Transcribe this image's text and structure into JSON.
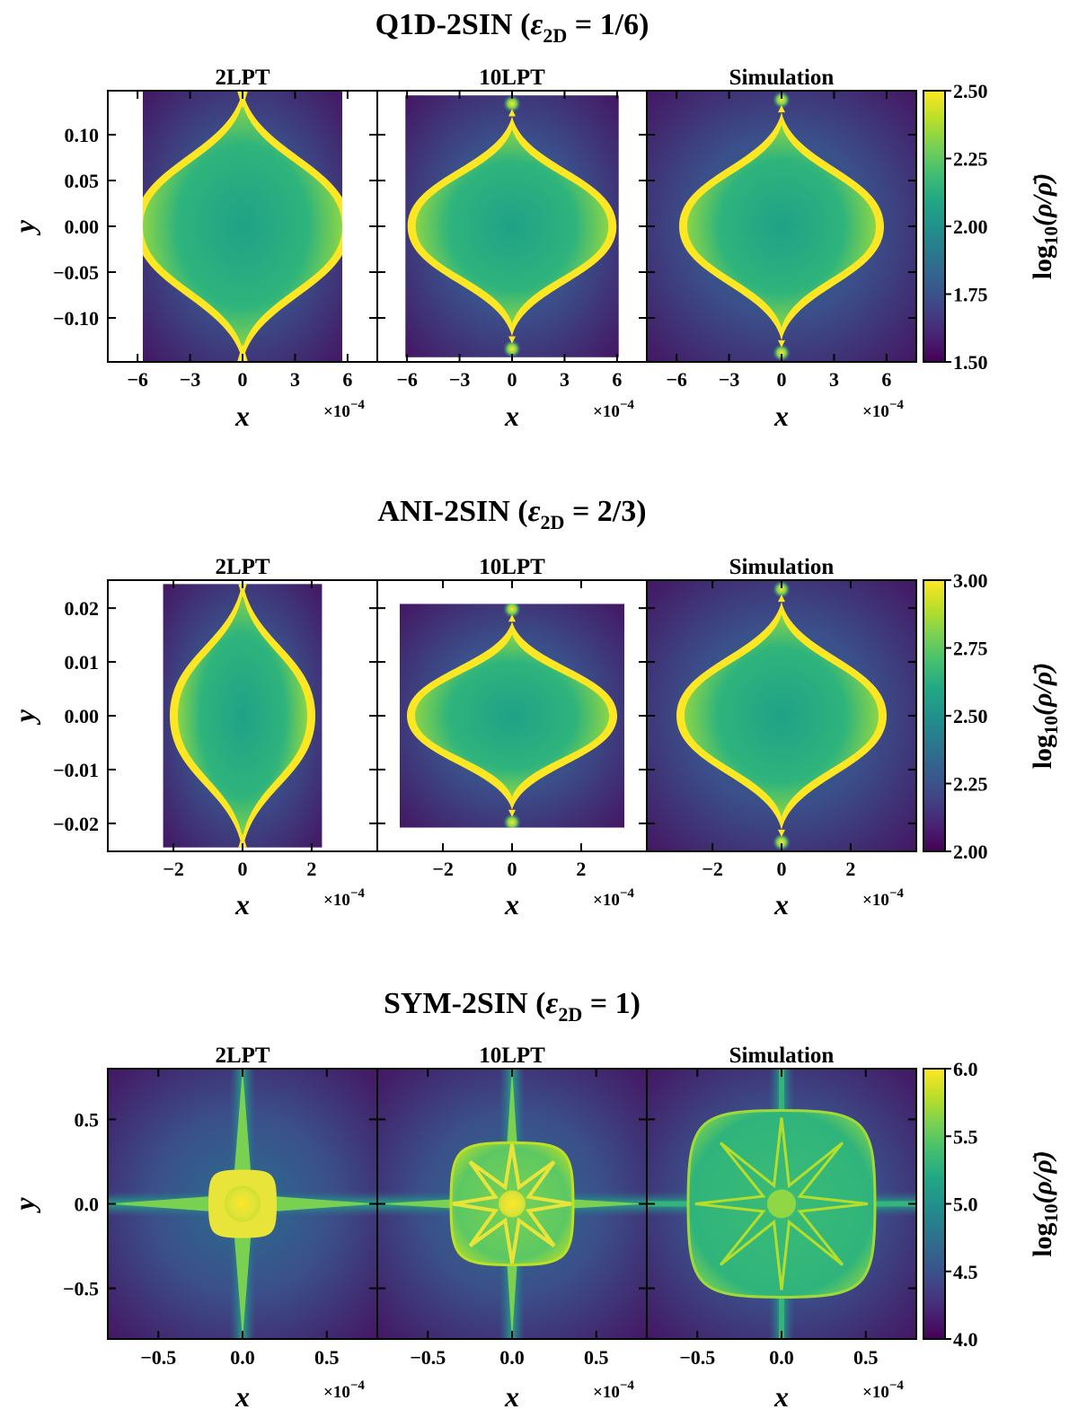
{
  "chart_data": [
    {
      "type": "heatmap",
      "title": "Q1D-2SIN (ε2D = 1/6)",
      "title_parts": {
        "name": "Q1D-2SIN (",
        "eps": "ε",
        "sub": "2D",
        "rest": " = 1/6)"
      },
      "panels": [
        {
          "title": "2LPT",
          "data_xlim": [
            -5.7,
            5.7
          ],
          "data_ylim": [
            -0.148,
            0.148
          ]
        },
        {
          "title": "10LPT",
          "data_xlim": [
            -6.1,
            6.1
          ],
          "data_ylim": [
            -0.143,
            0.143
          ]
        },
        {
          "title": "Simulation",
          "data_xlim": [
            -7.7,
            7.7
          ],
          "data_ylim": [
            -0.148,
            0.148
          ]
        }
      ],
      "xlabel": "x",
      "ylabel": "y",
      "x_scale_label": "×10",
      "x_scale_exp": "−4",
      "xlim": [
        -7.7,
        7.7
      ],
      "ylim": [
        -0.148,
        0.148
      ],
      "xticks": [
        -6,
        -3,
        0,
        3,
        6
      ],
      "xtick_labels": [
        "−6",
        "−3",
        "0",
        "3",
        "6"
      ],
      "yticks": [
        0.1,
        0.05,
        0.0,
        -0.05,
        -0.1
      ],
      "ytick_labels": [
        "0.10",
        "0.05",
        "0.00",
        "−0.05",
        "−0.10"
      ],
      "colorbar": {
        "label": "log10(ρ/ρ̄)",
        "min": 1.5,
        "max": 2.5,
        "ticks": [
          2.5,
          2.25,
          2.0,
          1.75,
          1.5
        ],
        "tick_labels": [
          "2.50",
          "2.25",
          "2.00",
          "1.75",
          "1.50"
        ]
      }
    },
    {
      "type": "heatmap",
      "title": "ANI-2SIN (ε2D = 2/3)",
      "title_parts": {
        "name": "ANI-2SIN (",
        "eps": "ε",
        "sub": "2D",
        "rest": " = 2/3)"
      },
      "panels": [
        {
          "title": "2LPT",
          "data_xlim": [
            -2.3,
            2.3
          ],
          "data_ylim": [
            -0.0245,
            0.0245
          ]
        },
        {
          "title": "10LPT",
          "data_xlim": [
            -3.25,
            3.25
          ],
          "data_ylim": [
            -0.0208,
            0.0208
          ]
        },
        {
          "title": "Simulation",
          "data_xlim": [
            -3.9,
            3.9
          ],
          "data_ylim": [
            -0.0252,
            0.0252
          ]
        }
      ],
      "xlabel": "x",
      "ylabel": "y",
      "x_scale_label": "×10",
      "x_scale_exp": "−4",
      "xlim": [
        -3.9,
        3.9
      ],
      "ylim": [
        -0.0252,
        0.0252
      ],
      "xticks": [
        -2,
        0,
        2
      ],
      "xtick_labels": [
        "−2",
        "0",
        "2"
      ],
      "yticks": [
        0.02,
        0.01,
        0.0,
        -0.01,
        -0.02
      ],
      "ytick_labels": [
        "0.02",
        "0.01",
        "0.00",
        "−0.01",
        "−0.02"
      ],
      "colorbar": {
        "label": "log10(ρ/ρ̄)",
        "min": 2.0,
        "max": 3.0,
        "ticks": [
          3.0,
          2.75,
          2.5,
          2.25,
          2.0
        ],
        "tick_labels": [
          "3.00",
          "2.75",
          "2.50",
          "2.25",
          "2.00"
        ]
      }
    },
    {
      "type": "heatmap",
      "title": "SYM-2SIN (ε2D = 1)",
      "title_parts": {
        "name": "SYM-2SIN (",
        "eps": "ε",
        "sub": "2D",
        "rest": " = 1)"
      },
      "panels": [
        {
          "title": "2LPT",
          "data_xlim": [
            -0.8,
            0.8
          ],
          "data_ylim": [
            -0.8,
            0.8
          ]
        },
        {
          "title": "10LPT",
          "data_xlim": [
            -0.8,
            0.8
          ],
          "data_ylim": [
            -0.8,
            0.8
          ]
        },
        {
          "title": "Simulation",
          "data_xlim": [
            -0.8,
            0.8
          ],
          "data_ylim": [
            -0.8,
            0.8
          ]
        }
      ],
      "xlabel": "x",
      "ylabel": "y",
      "x_scale_label": "×10",
      "x_scale_exp": "−4",
      "xlim": [
        -0.8,
        0.8
      ],
      "ylim": [
        -0.8,
        0.8
      ],
      "xticks": [
        -0.5,
        0.0,
        0.5
      ],
      "xtick_labels": [
        "−0.5",
        "0.0",
        "0.5"
      ],
      "yticks": [
        0.5,
        0.0,
        -0.5
      ],
      "ytick_labels": [
        "0.5",
        "0.0",
        "−0.5"
      ],
      "colorbar": {
        "label": "log10(ρ/ρ̄)",
        "min": 4.0,
        "max": 6.0,
        "ticks": [
          6.0,
          5.5,
          5.0,
          4.5,
          4.0
        ],
        "tick_labels": [
          "6.0",
          "5.5",
          "5.0",
          "4.5",
          "4.0"
        ]
      }
    }
  ]
}
